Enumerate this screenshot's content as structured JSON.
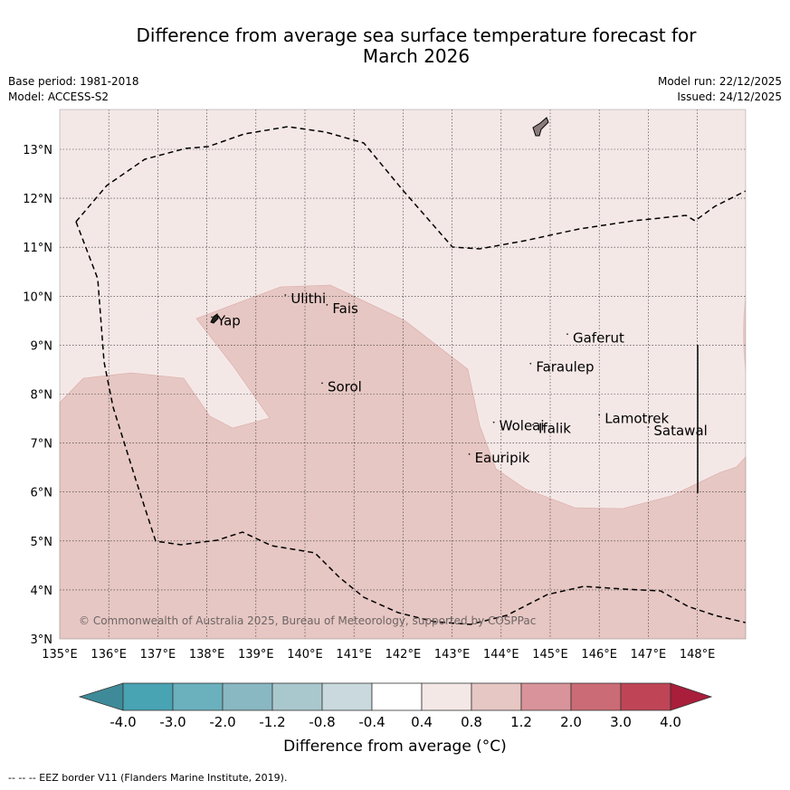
{
  "header": {
    "title_line1": "Difference from average sea surface temperature forecast for",
    "title_line2": "March 2026",
    "base_period": "Base period: 1981-2018",
    "model": "Model: ACCESS-S2",
    "model_run": "Model run: 22/12/2025",
    "issued": "Issued: 24/12/2025"
  },
  "map": {
    "lon_range": [
      135,
      149
    ],
    "lat_range": [
      3,
      13.8
    ],
    "lat_labels": [
      "3°N",
      "4°N",
      "5°N",
      "6°N",
      "7°N",
      "8°N",
      "9°N",
      "10°N",
      "11°N",
      "12°N",
      "13°N"
    ],
    "lon_labels": [
      "135°E",
      "136°E",
      "137°E",
      "138°E",
      "139°E",
      "140°E",
      "141°E",
      "142°E",
      "143°E",
      "144°E",
      "145°E",
      "146°E",
      "147°E",
      "148°E"
    ],
    "copyright": "© Commonwealth of Australia 2025, Bureau of Meteorology, supported by COSPPac",
    "places": [
      {
        "name": "Yap",
        "lon": 138.1,
        "lat": 9.5
      },
      {
        "name": "Ulithi",
        "lon": 139.6,
        "lat": 9.95
      },
      {
        "name": "Fais",
        "lon": 140.45,
        "lat": 9.75
      },
      {
        "name": "Sorol",
        "lon": 140.35,
        "lat": 8.15
      },
      {
        "name": "Gaferut",
        "lon": 145.35,
        "lat": 9.15
      },
      {
        "name": "Faraulep",
        "lon": 144.6,
        "lat": 8.55
      },
      {
        "name": "Woleai",
        "lon": 143.85,
        "lat": 7.35
      },
      {
        "name": "Ifalik",
        "lon": 144.65,
        "lat": 7.3
      },
      {
        "name": "Eauripik",
        "lon": 143.35,
        "lat": 6.7
      },
      {
        "name": "Lamotrek",
        "lon": 146.0,
        "lat": 7.5
      },
      {
        "name": "Satawal",
        "lon": 147.0,
        "lat": 7.25
      }
    ],
    "colors": {
      "band_0_4_0_8": "#f4e8e7",
      "band_0_8_1_2": "#e6c7c3",
      "land": "#8c7b7b"
    }
  },
  "colorbar": {
    "tick_labels": [
      "-4.0",
      "-3.0",
      "-2.0",
      "-1.2",
      "-0.8",
      "-0.4",
      "0.4",
      "0.8",
      "1.2",
      "2.0",
      "3.0",
      "4.0"
    ],
    "colors": [
      "#3f8a99",
      "#48a3b3",
      "#6ab0bd",
      "#89b7c2",
      "#a9c8ce",
      "#c9d9dd",
      "#ffffff",
      "#f4e8e7",
      "#e6c7c3",
      "#d9939a",
      "#cb6b75",
      "#bf4556",
      "#a81e3b"
    ],
    "title": "Difference from average (°C)"
  },
  "footer": {
    "legend": "--  --  -- EEZ border V11 (Flanders Marine Institute, 2019)."
  }
}
